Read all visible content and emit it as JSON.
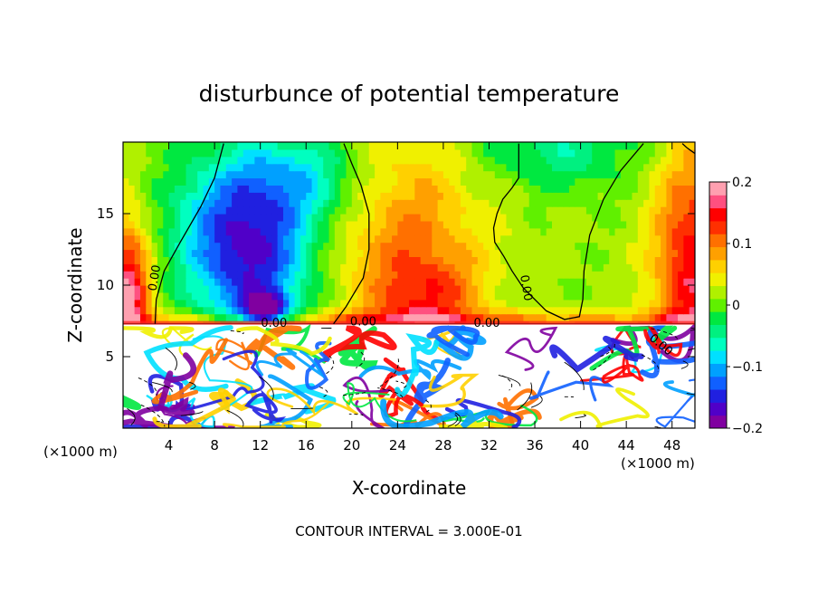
{
  "chart_data": {
    "type": "heatmap",
    "title": "disturbunce of potential temperature",
    "xlabel": "X-coordinate",
    "ylabel": "Z-coordinate",
    "x_unit": "(×1000 m)",
    "x_unit_right": "(×1000 m)",
    "xlim": [
      0,
      50
    ],
    "ylim": [
      0,
      20
    ],
    "xticks": [
      "4",
      "8",
      "12",
      "16",
      "20",
      "24",
      "28",
      "32",
      "36",
      "40",
      "44",
      "48"
    ],
    "xtick_values": [
      4,
      8,
      12,
      16,
      20,
      24,
      28,
      32,
      36,
      40,
      44,
      48
    ],
    "yticks": [
      "5",
      "10",
      "15"
    ],
    "ytick_values": [
      5,
      10,
      15
    ],
    "colorbar": {
      "range": [
        -0.2,
        0.2
      ],
      "ticks": [
        "0.2",
        "0.1",
        "0",
        "−0.1",
        "−0.2"
      ],
      "tick_values": [
        0.2,
        0.1,
        0,
        -0.1,
        -0.2
      ],
      "colors": [
        "#8000a0",
        "#5000c8",
        "#2020e0",
        "#1060ff",
        "#00a0ff",
        "#00e0ff",
        "#00ffc0",
        "#00f080",
        "#00e840",
        "#60f000",
        "#b0f000",
        "#f0f000",
        "#ffd000",
        "#ffa000",
        "#ff7000",
        "#ff3000",
        "#ff0000",
        "#ff5080",
        "#ffa0b0"
      ]
    },
    "contour_labels": [
      {
        "text": "0.00",
        "x": 2.8,
        "z": 10.5,
        "rot": -80
      },
      {
        "text": "0.00",
        "x": 13.2,
        "z": 7.3,
        "rot": 0
      },
      {
        "text": "0.00",
        "x": 21.0,
        "z": 7.4,
        "rot": 0
      },
      {
        "text": "0.00",
        "x": 31.8,
        "z": 7.3,
        "rot": 0
      },
      {
        "text": "0.00",
        "x": 35.2,
        "z": 9.8,
        "rot": 80
      },
      {
        "text": "0.00",
        "x": 47.0,
        "z": 5.8,
        "rot": 40
      }
    ],
    "zero_contours": [
      [
        [
          2.8,
          7.3
        ],
        [
          2.9,
          9
        ],
        [
          3.6,
          11
        ],
        [
          5.0,
          13
        ],
        [
          6.8,
          15.5
        ],
        [
          8.0,
          17.5
        ],
        [
          8.8,
          19.9
        ]
      ],
      [
        [
          18.4,
          7.3
        ],
        [
          19.5,
          8.5
        ],
        [
          21,
          10.5
        ],
        [
          21.5,
          12.5
        ],
        [
          21.5,
          15
        ],
        [
          20.8,
          17
        ],
        [
          20,
          18.5
        ],
        [
          19.3,
          19.9
        ]
      ],
      [
        [
          45.5,
          19.9
        ],
        [
          43.5,
          18
        ],
        [
          42,
          16
        ],
        [
          40.8,
          13.5
        ],
        [
          40.3,
          11
        ],
        [
          40.2,
          9
        ],
        [
          39.9,
          7.8
        ],
        [
          38.6,
          7.6
        ],
        [
          37,
          8.2
        ],
        [
          35,
          9.8
        ],
        [
          34,
          11
        ],
        [
          33.3,
          12
        ],
        [
          32.5,
          13
        ],
        [
          32.4,
          14
        ],
        [
          32.7,
          15
        ],
        [
          33.2,
          16
        ],
        [
          34.0,
          16.8
        ],
        [
          34.6,
          17.5
        ],
        [
          34.6,
          19.9
        ]
      ],
      [
        [
          48.9,
          19.9
        ],
        [
          49.3,
          19.6
        ],
        [
          50,
          19.2
        ]
      ]
    ],
    "fields": [
      {
        "x": 25,
        "z": 14,
        "sx": 40,
        "sz": 20,
        "v": 0.015
      },
      {
        "x": 11.5,
        "z": 11.5,
        "sx": 3.6,
        "sz": 4.5,
        "v": -0.155
      },
      {
        "x": 7.5,
        "z": 14.5,
        "sx": 3.5,
        "sz": 3.5,
        "v": -0.06
      },
      {
        "x": 15.5,
        "z": 17.5,
        "sx": 4,
        "sz": 2.5,
        "v": -0.08
      },
      {
        "x": 12.5,
        "z": 8.2,
        "sx": 1.3,
        "sz": 0.8,
        "v": -0.16
      },
      {
        "x": 25,
        "z": 12,
        "sx": 4.5,
        "sz": 6,
        "v": 0.085
      },
      {
        "x": 27,
        "z": 9,
        "sx": 3,
        "sz": 2,
        "v": 0.06
      },
      {
        "x": 0.4,
        "z": 9,
        "sx": 1.4,
        "sz": 4,
        "v": 0.17
      },
      {
        "x": 49.8,
        "z": 11,
        "sx": 2.4,
        "sz": 6,
        "v": 0.14
      },
      {
        "x": 38,
        "z": 19.5,
        "sx": 5,
        "sz": 2,
        "v": -0.06
      },
      {
        "x": 25,
        "z": 7.5,
        "sx": 30,
        "sz": 0.5,
        "v": 0.08
      }
    ],
    "lower_region_top": 7.3
  }
}
